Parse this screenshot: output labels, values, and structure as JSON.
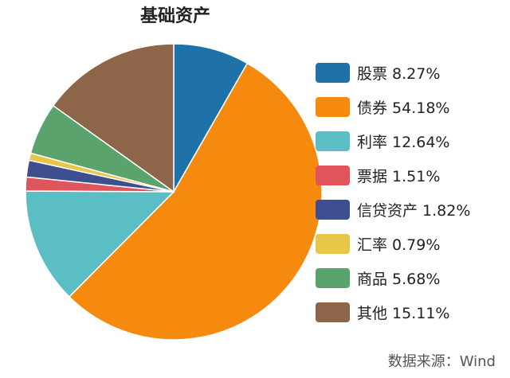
{
  "chart_data": {
    "type": "pie",
    "title": "基础资产",
    "slices": [
      {
        "name": "股票",
        "value": 8.27,
        "label": "股票 8.27%",
        "color": "#1f72a8"
      },
      {
        "name": "债券",
        "value": 54.18,
        "label": "债券 54.18%",
        "color": "#f58a0f"
      },
      {
        "name": "利率",
        "value": 12.64,
        "label": "利率 12.64%",
        "color": "#5bbec4"
      },
      {
        "name": "票据",
        "value": 1.51,
        "label": "票据 1.51%",
        "color": "#e0545b"
      },
      {
        "name": "信贷资产",
        "value": 1.82,
        "label": "信贷资产 1.82%",
        "color": "#3e4f8f"
      },
      {
        "name": "汇率",
        "value": 0.79,
        "label": "汇率 0.79%",
        "color": "#e8c64a"
      },
      {
        "name": "商品",
        "value": 5.68,
        "label": "商品 5.68%",
        "color": "#5aa36c"
      },
      {
        "name": "其他",
        "value": 15.11,
        "label": "其他 15.11%",
        "color": "#8d6548"
      }
    ],
    "legend_position": "right",
    "start_angle": "12 o'clock",
    "direction": "clockwise"
  },
  "source": "数据来源：Wind"
}
